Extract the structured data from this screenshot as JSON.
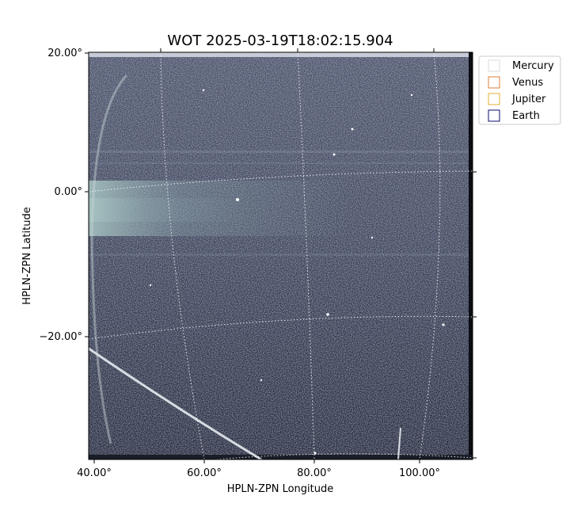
{
  "chart_data": {
    "type": "image",
    "title": "WOT 2025-03-19T18:02:15.904",
    "xlabel": "HPLN-ZPN Longitude",
    "ylabel": "HPLN-ZPN Latitude",
    "xticks": [
      "40.00°",
      "60.00°",
      "80.00°",
      "100.00°"
    ],
    "yticks": [
      "20.00°",
      "0.00°",
      "−20.00°"
    ],
    "grid": true,
    "legend_position": "upper-right-outside",
    "legend": [
      {
        "name": "Mercury",
        "color": "#d9d9d9"
      },
      {
        "name": "Venus",
        "color": "#e07b39"
      },
      {
        "name": "Jupiter",
        "color": "#e0b030"
      },
      {
        "name": "Earth",
        "color": "#0b0b6e"
      }
    ]
  }
}
